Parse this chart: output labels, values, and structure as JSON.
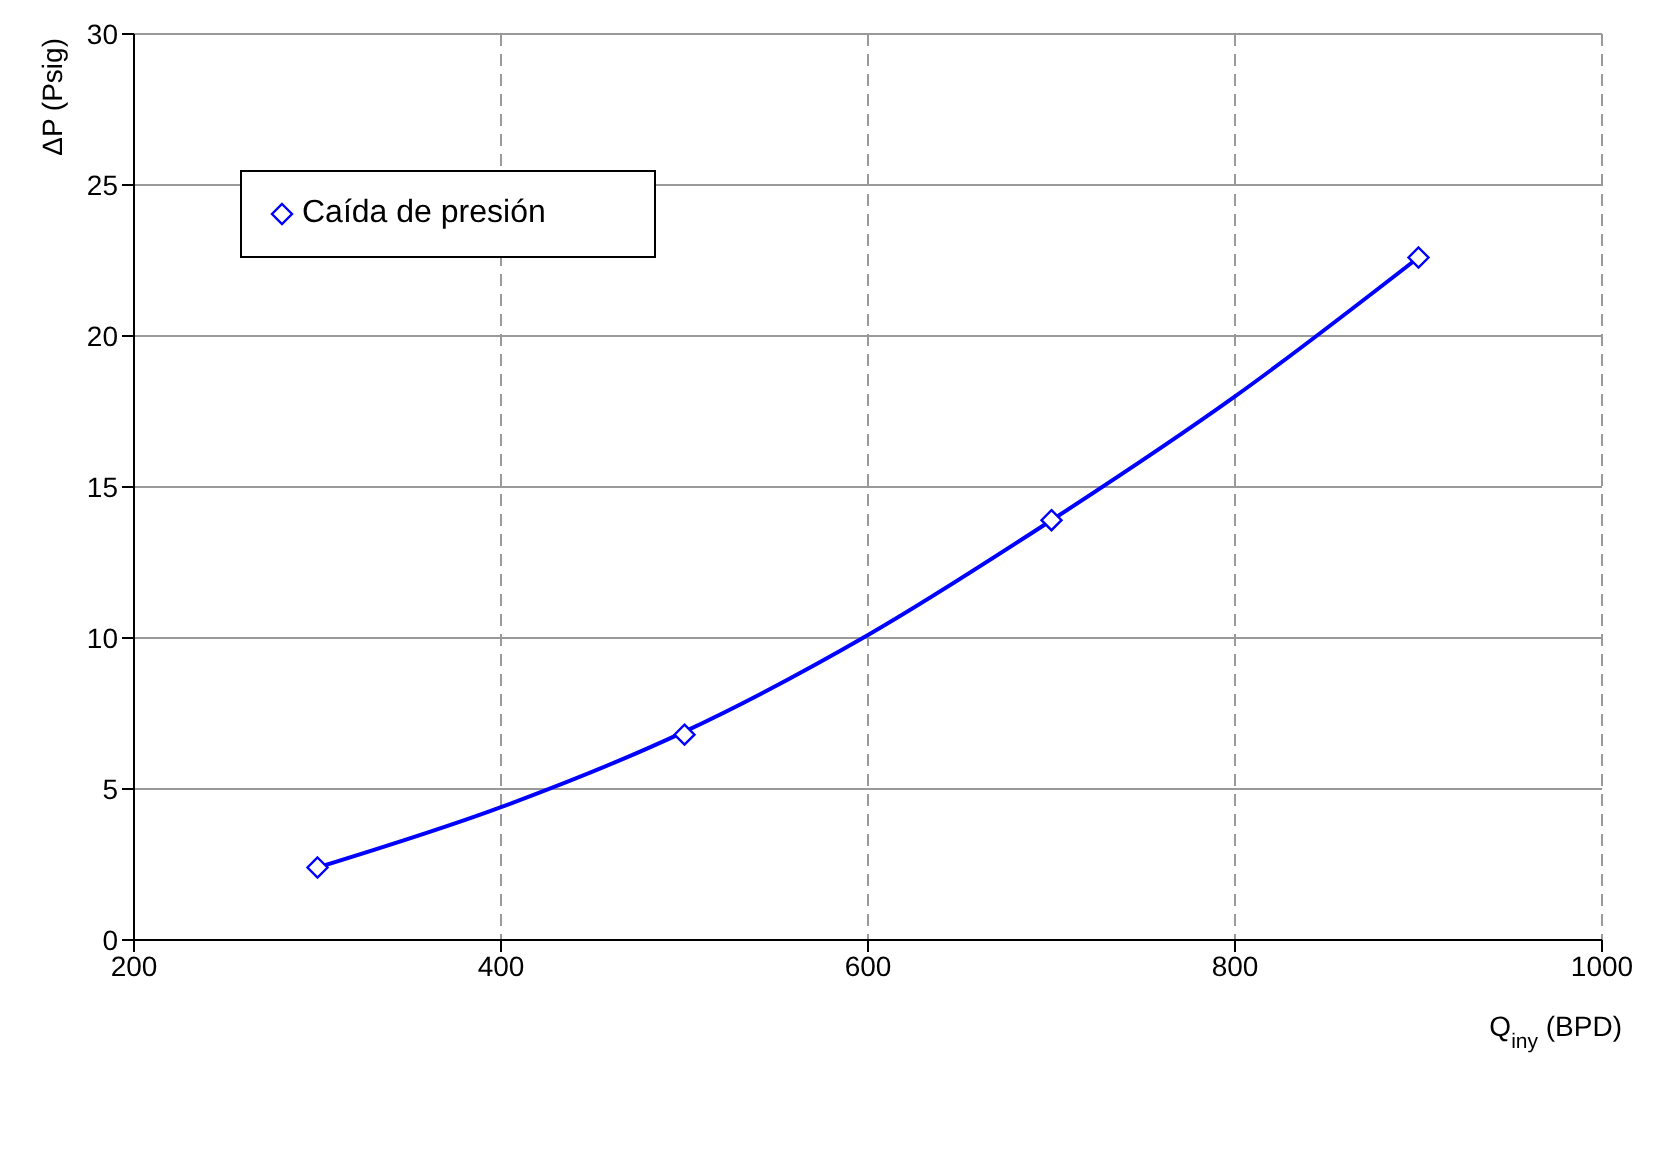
{
  "chart_data": {
    "type": "scatter",
    "xlabel": "Q$_{iny}$ (BPD)",
    "ylabel": "ΔP (Psig)",
    "series": [
      {
        "type": "scatter",
        "name": "Caída de presión",
        "color": "#0000ff",
        "x": [
          300,
          500,
          700,
          900
        ],
        "values": [
          2.4,
          6.8,
          13.9,
          22.6
        ]
      },
      {
        "type": "line",
        "color": "#0000ff",
        "marker": "none",
        "x": [
          300,
          400,
          500,
          600,
          700,
          800,
          900
        ],
        "values": [
          2.4,
          4.4,
          6.9,
          10.1,
          13.9,
          18.0,
          22.6
        ]
      }
    ],
    "xlim": [
      200,
      1000
    ],
    "xticks": [
      200,
      400,
      600,
      800,
      1000
    ],
    "ylim": [
      0,
      30
    ],
    "yticks": [
      0,
      5,
      10,
      15,
      20,
      25,
      30
    ],
    "grid": true,
    "legend": "top left",
    "marker": "diamond"
  }
}
